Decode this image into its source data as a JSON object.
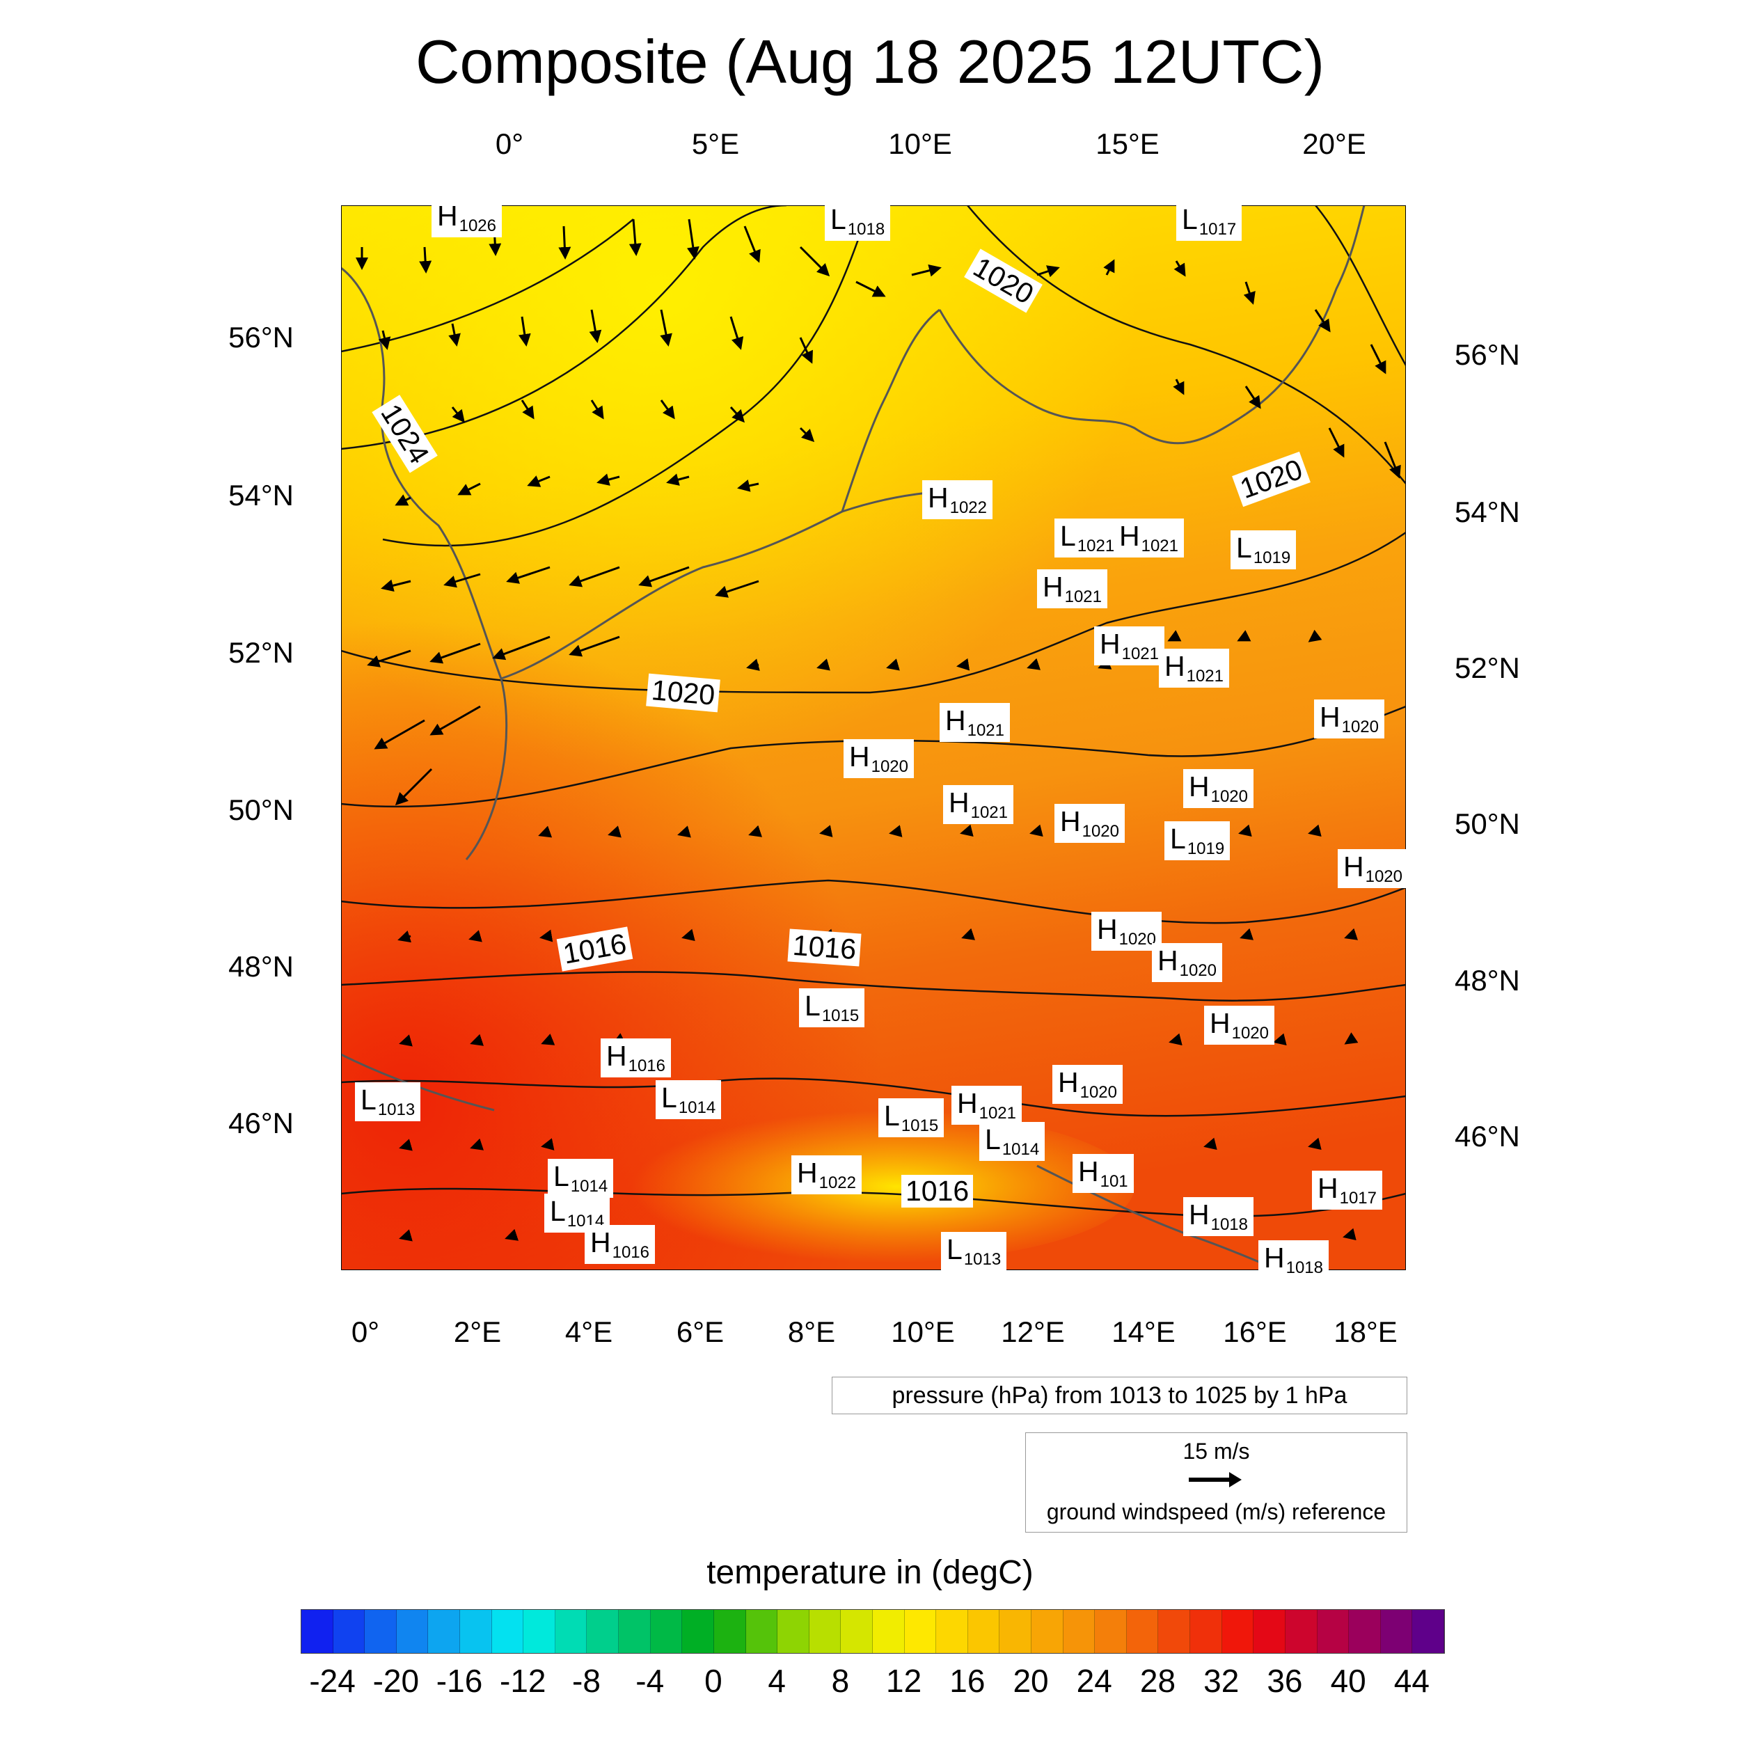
{
  "title": "Composite (Aug 18 2025 12UTC)",
  "lon_ticks_top": [
    "0°",
    "5°E",
    "10°E",
    "15°E",
    "20°E"
  ],
  "lon_ticks_bottom": [
    "0°",
    "2°E",
    "4°E",
    "6°E",
    "8°E",
    "10°E",
    "12°E",
    "14°E",
    "16°E",
    "18°E"
  ],
  "lat_ticks_left": [
    "56°N",
    "54°N",
    "52°N",
    "50°N",
    "48°N",
    "46°N"
  ],
  "lat_ticks_right": [
    "56°N",
    "54°N",
    "52°N",
    "50°N",
    "48°N",
    "46°N"
  ],
  "isobar_labels": [
    "1024",
    "1020",
    "1020",
    "1020",
    "1016",
    "1016",
    "1016"
  ],
  "pressure_centers": [
    {
      "type": "H",
      "value": "1026"
    },
    {
      "type": "L",
      "value": "1018"
    },
    {
      "type": "L",
      "value": "1017"
    },
    {
      "type": "H",
      "value": "1022"
    },
    {
      "type": "L",
      "value": "1021"
    },
    {
      "type": "H",
      "value": "1021"
    },
    {
      "type": "L",
      "value": "1019"
    },
    {
      "type": "H",
      "value": "1021"
    },
    {
      "type": "H",
      "value": "1021"
    },
    {
      "type": "H",
      "value": "1021"
    },
    {
      "type": "H",
      "value": "1020"
    },
    {
      "type": "H",
      "value": "1021"
    },
    {
      "type": "H",
      "value": "1020"
    },
    {
      "type": "H",
      "value": "1020"
    },
    {
      "type": "H",
      "value": "1021"
    },
    {
      "type": "H",
      "value": "1020"
    },
    {
      "type": "L",
      "value": "1019"
    },
    {
      "type": "H",
      "value": "1020"
    },
    {
      "type": "H",
      "value": "1020"
    },
    {
      "type": "H",
      "value": "1020"
    },
    {
      "type": "L",
      "value": "1015"
    },
    {
      "type": "H",
      "value": "1020"
    },
    {
      "type": "H",
      "value": "1016"
    },
    {
      "type": "L",
      "value": "1014"
    },
    {
      "type": "H",
      "value": "1020"
    },
    {
      "type": "L",
      "value": "1013"
    },
    {
      "type": "L",
      "value": "1015"
    },
    {
      "type": "H",
      "value": "1021"
    },
    {
      "type": "L",
      "value": "1014"
    },
    {
      "type": "L",
      "value": "1014"
    },
    {
      "type": "H",
      "value": "101"
    },
    {
      "type": "H",
      "value": "1022"
    },
    {
      "type": "L",
      "value": "1014"
    },
    {
      "type": "H",
      "value": "1017"
    },
    {
      "type": "H",
      "value": "1018"
    },
    {
      "type": "H",
      "value": "1016"
    },
    {
      "type": "L",
      "value": "1013"
    },
    {
      "type": "H",
      "value": "1018"
    }
  ],
  "pressure_legend": "pressure (hPa) from 1013 to 1025 by 1 hPa",
  "wind_reference": {
    "speed_label": "15 m/s",
    "caption": "ground windspeed (m/s) reference"
  },
  "colorbar": {
    "title": "temperature in (degC)",
    "min": -26,
    "max": 46,
    "step": 2,
    "labels": [
      "-24",
      "-20",
      "-16",
      "-12",
      "-8",
      "-4",
      "0",
      "4",
      "8",
      "12",
      "16",
      "20",
      "24",
      "28",
      "32",
      "36",
      "40",
      "44"
    ]
  },
  "colors": {
    "cold": "#1010f0",
    "warm_field": "#f7a510",
    "hot": "#ee1c08",
    "max": "#5a0090"
  }
}
